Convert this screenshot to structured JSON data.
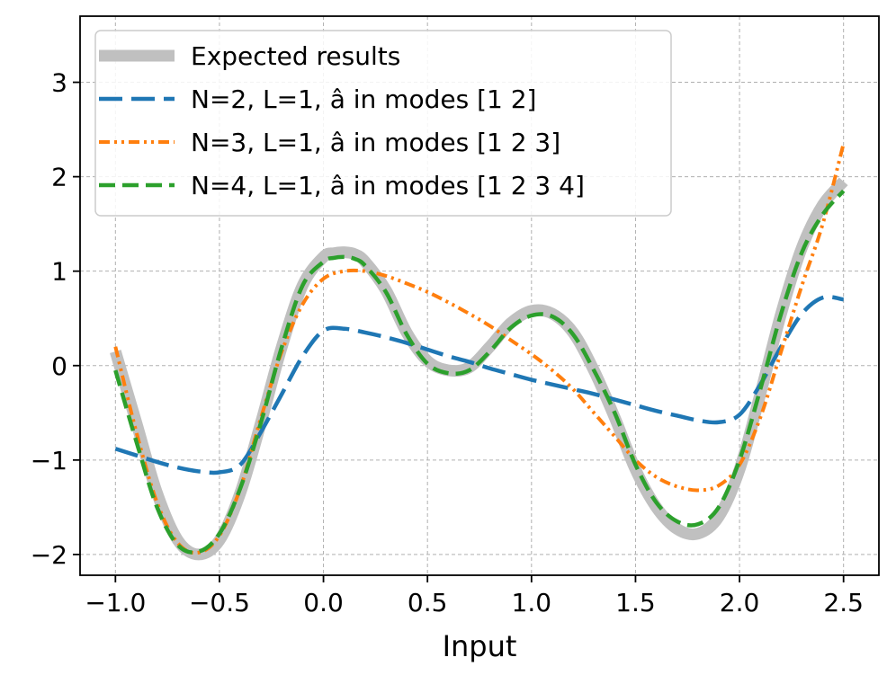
{
  "chart_data": {
    "type": "line",
    "title": "",
    "xlabel": "Input",
    "ylabel": "",
    "xlim": [
      -1.17,
      2.67
    ],
    "ylim": [
      -2.22,
      3.7
    ],
    "grid": true,
    "x_ticks": [
      -1.0,
      -0.5,
      0.0,
      0.5,
      1.0,
      1.5,
      2.0,
      2.5
    ],
    "x_tick_labels": [
      "−1.0",
      "−0.5",
      "0.0",
      "0.5",
      "1.0",
      "1.5",
      "2.0",
      "2.5"
    ],
    "y_ticks": [
      -2,
      -1,
      0,
      1,
      2,
      3
    ],
    "y_tick_labels": [
      "−2",
      "−1",
      "0",
      "1",
      "2",
      "3"
    ],
    "legend_position": "top-left",
    "series": [
      {
        "name": "Expected results",
        "color": "#c0c0c0",
        "style": "solid-thick",
        "x": [
          -1.0,
          -0.9,
          -0.8,
          -0.7,
          -0.6,
          -0.5,
          -0.4,
          -0.3,
          -0.2,
          -0.1,
          0.0,
          0.05,
          0.1,
          0.15,
          0.2,
          0.3,
          0.4,
          0.5,
          0.6,
          0.7,
          0.8,
          0.9,
          1.0,
          1.1,
          1.2,
          1.3,
          1.4,
          1.5,
          1.6,
          1.7,
          1.8,
          1.9,
          2.0,
          2.1,
          2.2,
          2.3,
          2.4,
          2.5
        ],
        "y": [
          0.15,
          -0.6,
          -1.35,
          -1.85,
          -2.0,
          -1.85,
          -1.35,
          -0.6,
          0.2,
          0.85,
          1.15,
          1.19,
          1.2,
          1.18,
          1.1,
          0.8,
          0.35,
          0.05,
          -0.05,
          -0.02,
          0.2,
          0.45,
          0.58,
          0.55,
          0.35,
          -0.05,
          -0.55,
          -1.1,
          -1.5,
          -1.73,
          -1.78,
          -1.6,
          -1.1,
          -0.3,
          0.55,
          1.25,
          1.7,
          1.95
        ]
      },
      {
        "name": "N=2, L=1, â in modes [1 2]",
        "color": "#1f77b4",
        "style": "dashed-long",
        "x": [
          -1.0,
          -0.9,
          -0.8,
          -0.7,
          -0.6,
          -0.5,
          -0.4,
          -0.3,
          -0.2,
          -0.1,
          0.0,
          0.1,
          0.2,
          0.3,
          0.4,
          0.5,
          0.6,
          0.7,
          0.8,
          0.9,
          1.0,
          1.1,
          1.2,
          1.3,
          1.4,
          1.5,
          1.6,
          1.7,
          1.8,
          1.9,
          2.0,
          2.1,
          2.2,
          2.3,
          2.4,
          2.5
        ],
        "y": [
          -0.88,
          -0.95,
          -1.02,
          -1.08,
          -1.12,
          -1.13,
          -1.05,
          -0.7,
          -0.3,
          0.1,
          0.37,
          0.39,
          0.35,
          0.3,
          0.24,
          0.17,
          0.1,
          0.04,
          -0.03,
          -0.09,
          -0.15,
          -0.2,
          -0.25,
          -0.3,
          -0.36,
          -0.42,
          -0.48,
          -0.53,
          -0.58,
          -0.6,
          -0.52,
          -0.2,
          0.2,
          0.55,
          0.72,
          0.7
        ]
      },
      {
        "name": "N=3, L=1, â in modes [1 2 3]",
        "color": "#ff7f0e",
        "style": "dash-dot-dot",
        "x": [
          -1.0,
          -0.9,
          -0.8,
          -0.7,
          -0.6,
          -0.5,
          -0.4,
          -0.3,
          -0.2,
          -0.1,
          0.0,
          0.1,
          0.2,
          0.3,
          0.4,
          0.5,
          0.6,
          0.7,
          0.8,
          0.9,
          1.0,
          1.1,
          1.2,
          1.3,
          1.4,
          1.5,
          1.6,
          1.7,
          1.8,
          1.9,
          2.0,
          2.1,
          2.2,
          2.3,
          2.4,
          2.5
        ],
        "y": [
          0.2,
          -0.7,
          -1.45,
          -1.88,
          -1.98,
          -1.8,
          -1.3,
          -0.55,
          0.15,
          0.65,
          0.92,
          1.0,
          1.0,
          0.95,
          0.87,
          0.78,
          0.67,
          0.55,
          0.42,
          0.27,
          0.12,
          -0.05,
          -0.25,
          -0.5,
          -0.75,
          -1.0,
          -1.18,
          -1.28,
          -1.32,
          -1.27,
          -1.05,
          -0.55,
          0.15,
          0.85,
          1.5,
          2.35
        ]
      },
      {
        "name": "N=4, L=1, â in modes [1 2 3 4]",
        "color": "#2ca02c",
        "style": "dashed",
        "x": [
          -1.0,
          -0.9,
          -0.8,
          -0.7,
          -0.6,
          -0.5,
          -0.4,
          -0.3,
          -0.2,
          -0.1,
          0.0,
          0.05,
          0.1,
          0.15,
          0.2,
          0.3,
          0.4,
          0.5,
          0.6,
          0.7,
          0.8,
          0.9,
          1.0,
          1.1,
          1.2,
          1.3,
          1.4,
          1.5,
          1.6,
          1.7,
          1.8,
          1.9,
          2.0,
          2.1,
          2.2,
          2.3,
          2.4,
          2.5
        ],
        "y": [
          -0.05,
          -0.8,
          -1.5,
          -1.9,
          -1.97,
          -1.78,
          -1.3,
          -0.6,
          0.2,
          0.85,
          1.1,
          1.14,
          1.15,
          1.13,
          1.06,
          0.78,
          0.33,
          0.02,
          -0.08,
          -0.05,
          0.15,
          0.4,
          0.53,
          0.52,
          0.33,
          -0.05,
          -0.5,
          -1.05,
          -1.45,
          -1.65,
          -1.68,
          -1.5,
          -1.0,
          -0.25,
          0.55,
          1.2,
          1.6,
          1.85
        ]
      }
    ]
  }
}
